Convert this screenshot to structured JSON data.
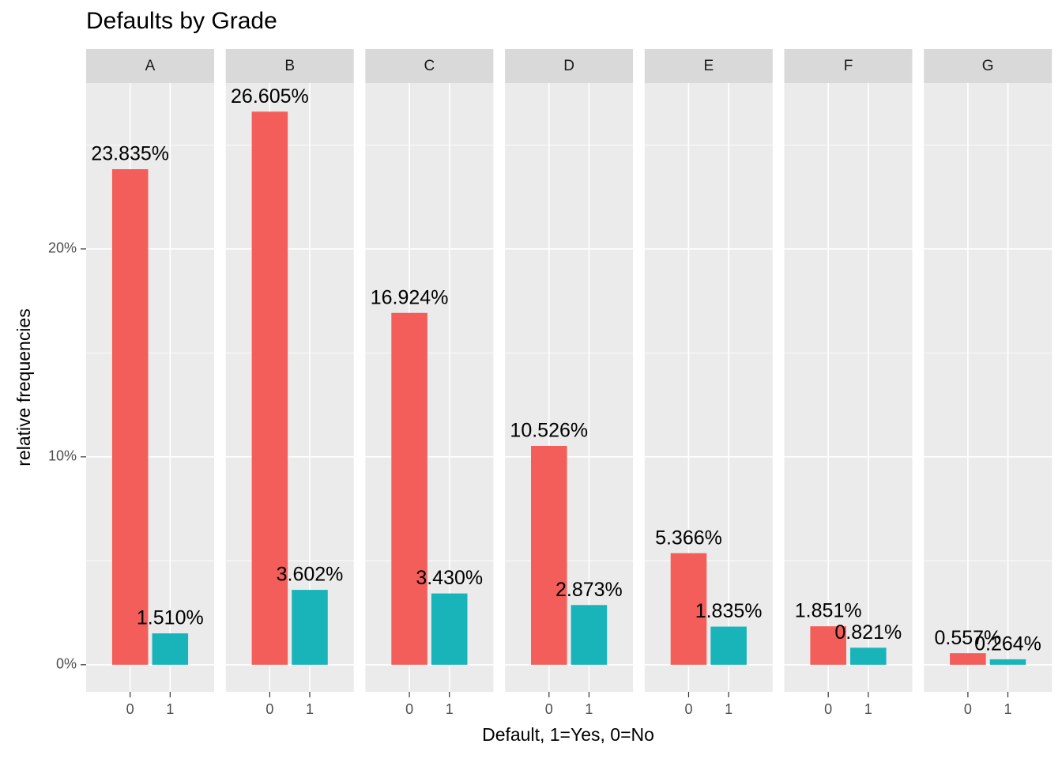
{
  "chart_data": {
    "type": "bar",
    "title": "Defaults by Grade",
    "x_label": "Default, 1=Yes, 0=No",
    "y_label": "relative frequencies",
    "categories": [
      "0",
      "1"
    ],
    "colors": [
      "#f35e5a",
      "#19b4b9"
    ],
    "ylim": [
      -1.3,
      27.98
    ],
    "yticks": [
      {
        "value": 0,
        "label": "0%"
      },
      {
        "value": 10,
        "label": "10%"
      },
      {
        "value": 20,
        "label": "20%"
      }
    ],
    "minor_grid": [
      5,
      15,
      25
    ],
    "grid": true,
    "facets": [
      {
        "title": "A",
        "values": [
          23.835,
          1.51
        ],
        "value_labels": [
          "23.835%",
          "1.510%"
        ]
      },
      {
        "title": "B",
        "values": [
          26.605,
          3.602
        ],
        "value_labels": [
          "26.605%",
          "3.602%"
        ]
      },
      {
        "title": "C",
        "values": [
          16.924,
          3.43
        ],
        "value_labels": [
          "16.924%",
          "3.430%"
        ]
      },
      {
        "title": "D",
        "values": [
          10.526,
          2.873
        ],
        "value_labels": [
          "10.526%",
          "2.873%"
        ]
      },
      {
        "title": "E",
        "values": [
          5.366,
          1.835
        ],
        "value_labels": [
          "5.366%",
          "1.835%"
        ]
      },
      {
        "title": "F",
        "values": [
          1.851,
          0.821
        ],
        "value_labels": [
          "1.851%",
          "0.821%"
        ]
      },
      {
        "title": "G",
        "values": [
          0.557,
          0.264
        ],
        "value_labels": [
          "0.557%",
          "0.264%"
        ]
      }
    ]
  }
}
